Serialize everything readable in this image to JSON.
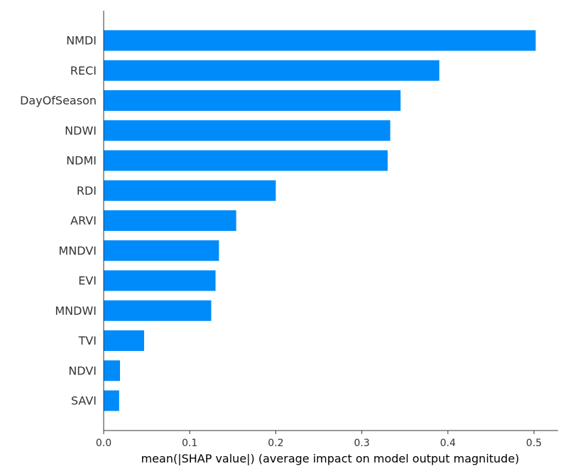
{
  "chart_data": {
    "type": "bar",
    "orientation": "horizontal",
    "categories": [
      "NMDI",
      "RECI",
      "DayOfSeason",
      "NDWI",
      "NDMI",
      "RDI",
      "ARVI",
      "MNDVI",
      "EVI",
      "MNDWI",
      "TVI",
      "NDVI",
      "SAVI"
    ],
    "values": [
      0.502,
      0.39,
      0.345,
      0.333,
      0.33,
      0.2,
      0.154,
      0.134,
      0.13,
      0.125,
      0.047,
      0.019,
      0.018
    ],
    "title": "",
    "xlabel": "mean(|SHAP value|) (average impact on model output magnitude)",
    "ylabel": "",
    "xlim": [
      0,
      0.528
    ],
    "xticks": [
      0.0,
      0.1,
      0.2,
      0.3,
      0.4,
      0.5
    ],
    "xtick_labels": [
      "0.0",
      "0.1",
      "0.2",
      "0.3",
      "0.4",
      "0.5"
    ],
    "grid": false,
    "bar_color": "#008bfb"
  }
}
